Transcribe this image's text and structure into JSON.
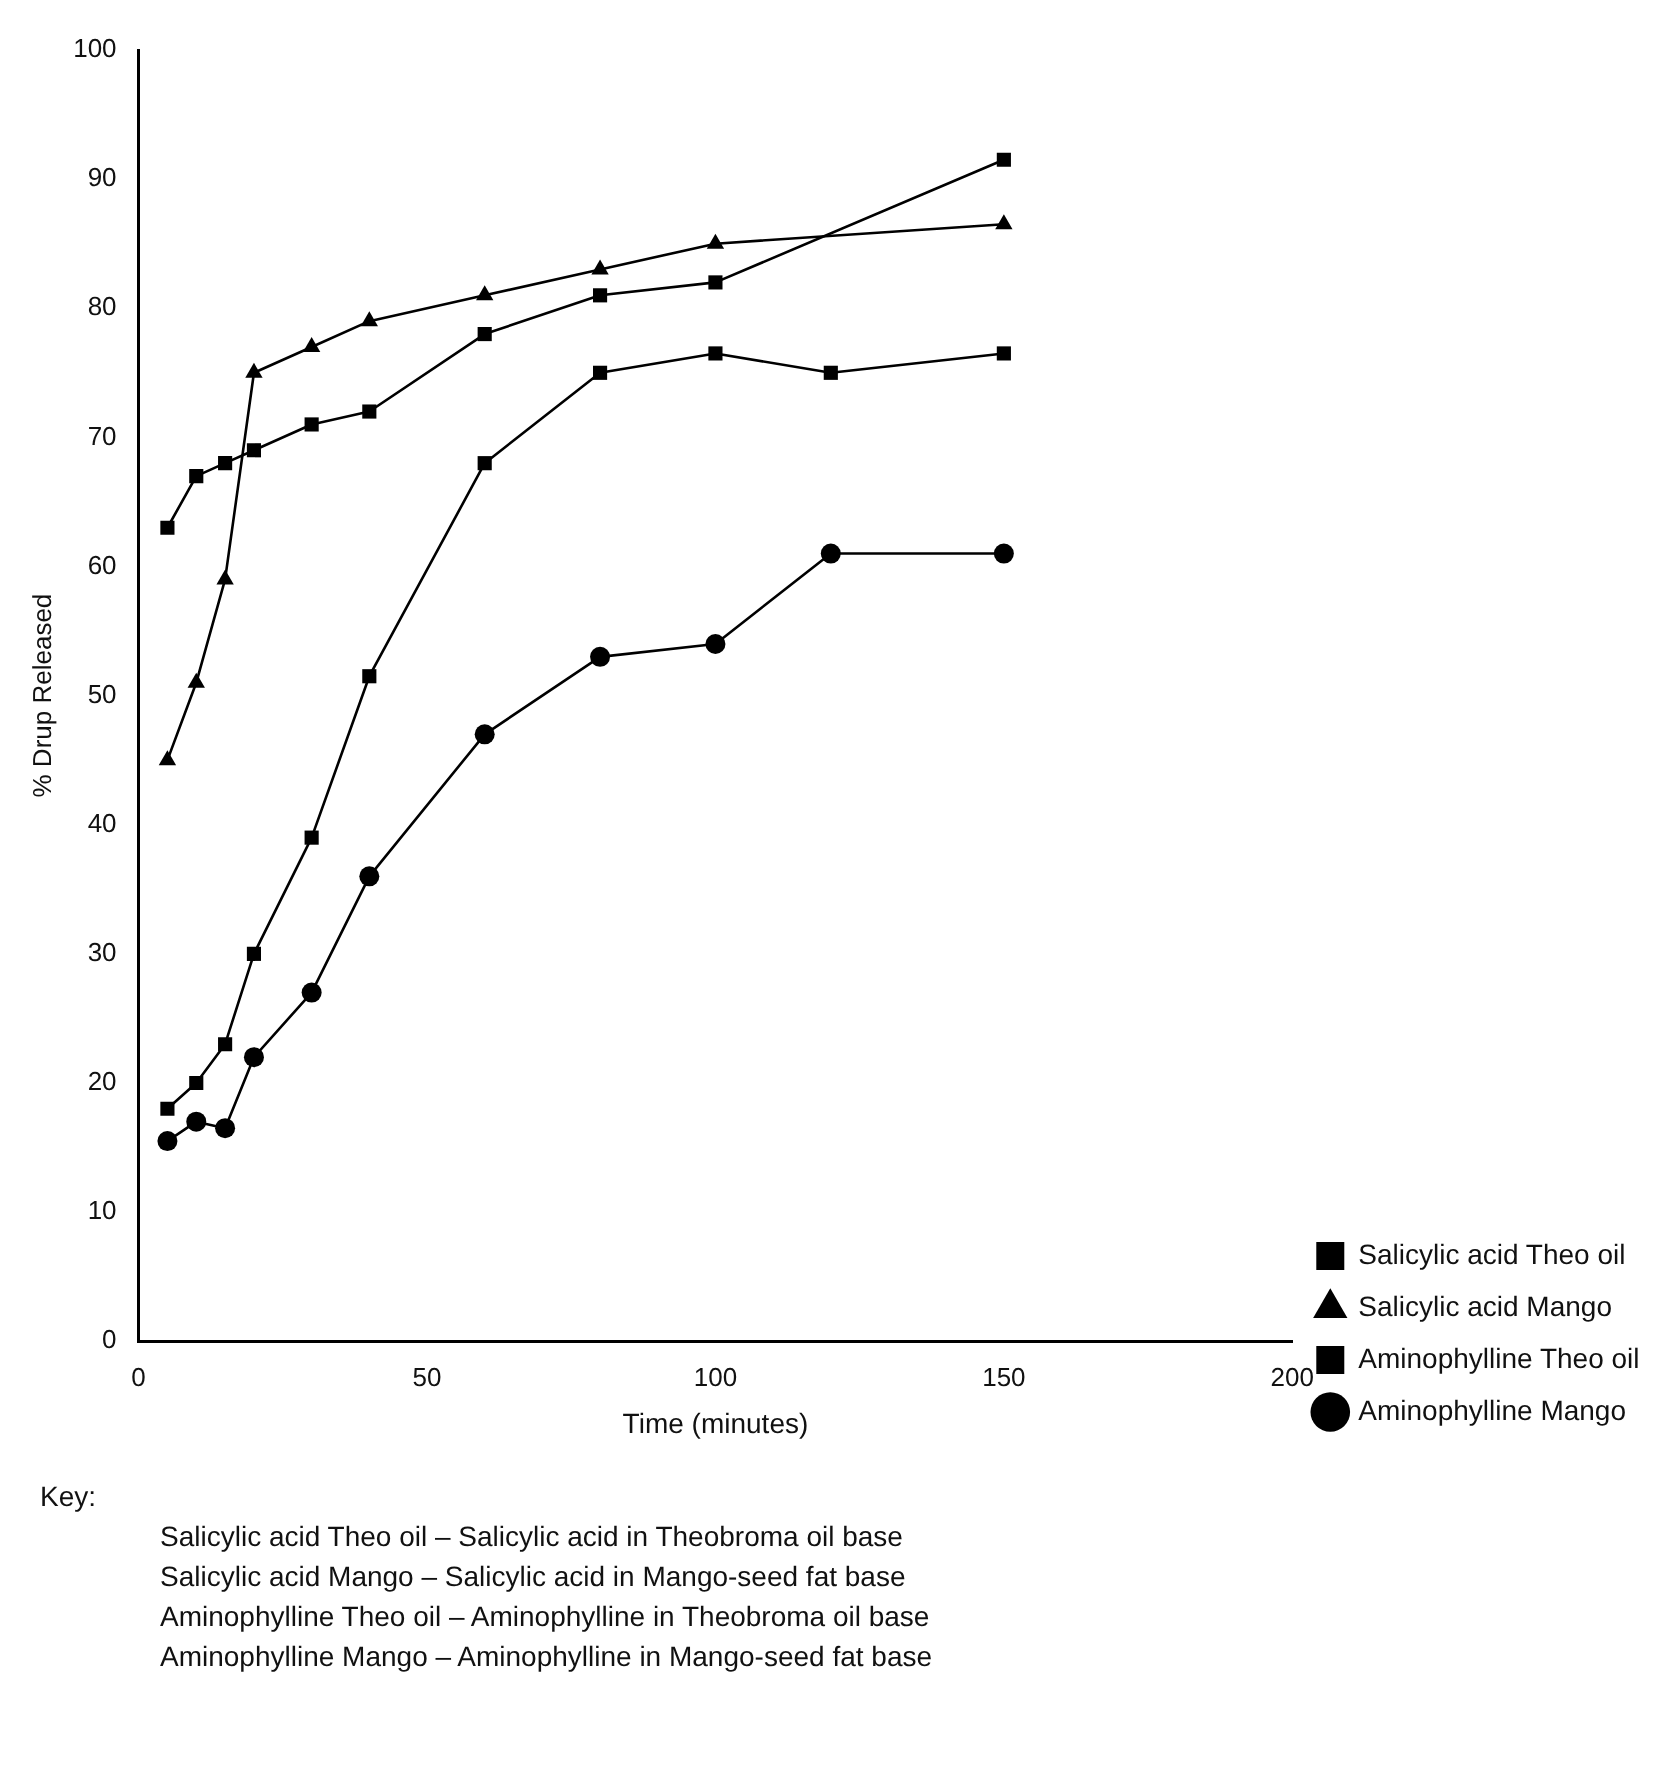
{
  "chart_data": {
    "type": "line",
    "xlabel": "Time (minutes)",
    "ylabel": "% Drup Released",
    "xlim": [
      0,
      200
    ],
    "xticks": [
      0,
      50,
      100,
      150,
      200
    ],
    "ylim": [
      0,
      100
    ],
    "yticks": [
      0,
      10,
      20,
      30,
      40,
      50,
      60,
      70,
      80,
      90,
      100
    ],
    "grid": false,
    "legend": "bottom right",
    "line_style": "solid",
    "series": [
      {
        "name": "Salicylic acid Theo oil",
        "color": "#000000",
        "marker": "square",
        "x": [
          5,
          10,
          15,
          20,
          30,
          40,
          60,
          80,
          100,
          150
        ],
        "values": [
          63,
          67,
          68,
          69,
          71,
          72,
          78,
          81,
          82,
          91.5
        ]
      },
      {
        "name": "Salicylic acid Mango",
        "color": "#000000",
        "marker": "triangle",
        "x": [
          5,
          10,
          15,
          20,
          30,
          40,
          60,
          80,
          100,
          150
        ],
        "values": [
          45,
          51,
          59,
          75,
          77,
          79,
          81,
          83,
          85,
          86.5
        ]
      },
      {
        "name": "Aminophylline Theo oil",
        "color": "#000000",
        "marker": "square",
        "x": [
          5,
          10,
          15,
          20,
          30,
          40,
          60,
          80,
          100,
          120,
          150
        ],
        "values": [
          18,
          20,
          23,
          30,
          39,
          51.5,
          68,
          75,
          76.5,
          75,
          76.5
        ]
      },
      {
        "name": "Aminophylline Mango",
        "color": "#000000",
        "marker": "circle",
        "x": [
          5,
          10,
          15,
          20,
          30,
          40,
          60,
          80,
          100,
          120,
          150
        ],
        "values": [
          15.5,
          17,
          16.5,
          22,
          27,
          36,
          47,
          53,
          54,
          61,
          61
        ]
      }
    ],
    "annotations": [
      "Key:",
      "Salicylic acid Theo oil  –  Salicylic acid in Theobroma oil base",
      "Salicylic acid Mango  –  Salicylic acid in Mango-seed fat base",
      "Aminophylline Theo oil  –  Aminophylline in Theobroma oil base",
      "Aminophylline Mango  –  Aminophylline in Mango-seed fat base"
    ]
  }
}
